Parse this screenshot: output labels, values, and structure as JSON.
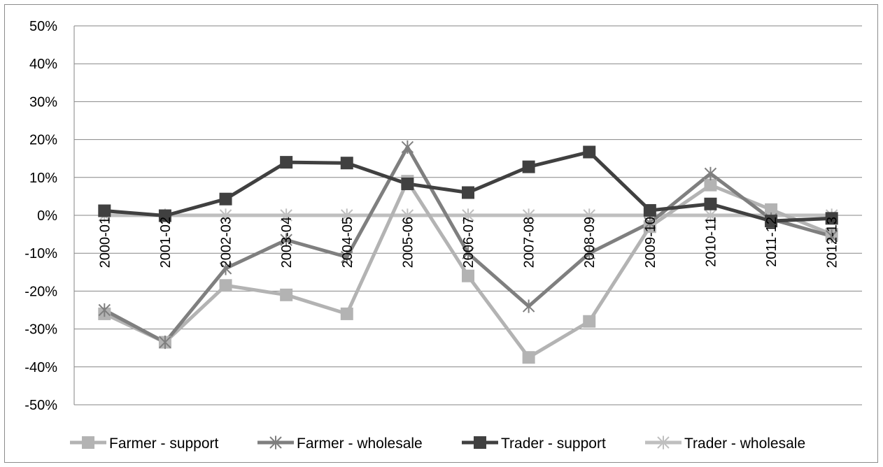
{
  "chart_data": {
    "type": "line",
    "title": "",
    "xlabel": "",
    "ylabel": "",
    "ylim": [
      -0.5,
      0.5
    ],
    "yticks": [
      "50%",
      "40%",
      "30%",
      "20%",
      "10%",
      "0%",
      "-10%",
      "-20%",
      "-30%",
      "-40%",
      "-50%"
    ],
    "grid": "horizontal",
    "legend_position": "bottom",
    "categories": [
      "2000-01",
      "2001-02",
      "2002-03",
      "2003-04",
      "2004-05",
      "2005-06",
      "2006-07",
      "2007-08",
      "2008-09",
      "2009-10",
      "2010-11",
      "2011-12",
      "2012-13"
    ],
    "series": [
      {
        "name": "Farmer - support",
        "color": "#b3b3b3",
        "marker": "square",
        "values": [
          -0.26,
          -0.335,
          -0.185,
          -0.21,
          -0.26,
          0.09,
          -0.16,
          -0.375,
          -0.28,
          -0.03,
          0.08,
          0.015,
          -0.05
        ]
      },
      {
        "name": "Farmer - wholesale",
        "color": "#7f7f7f",
        "marker": "star",
        "values": [
          -0.25,
          -0.335,
          -0.14,
          -0.065,
          -0.11,
          0.18,
          -0.1,
          -0.24,
          -0.1,
          -0.02,
          0.11,
          -0.01,
          -0.055
        ]
      },
      {
        "name": "Trader - support",
        "color": "#404040",
        "marker": "square",
        "values": [
          0.012,
          -0.001,
          0.043,
          0.14,
          0.138,
          0.083,
          0.06,
          0.128,
          0.167,
          0.013,
          0.03,
          -0.015,
          -0.008
        ]
      },
      {
        "name": "Trader - wholesale",
        "color": "#bfbfbf",
        "marker": "star",
        "values": [
          0,
          0,
          0,
          0,
          0,
          0,
          0,
          0,
          0,
          0,
          0,
          0,
          0
        ]
      }
    ]
  }
}
